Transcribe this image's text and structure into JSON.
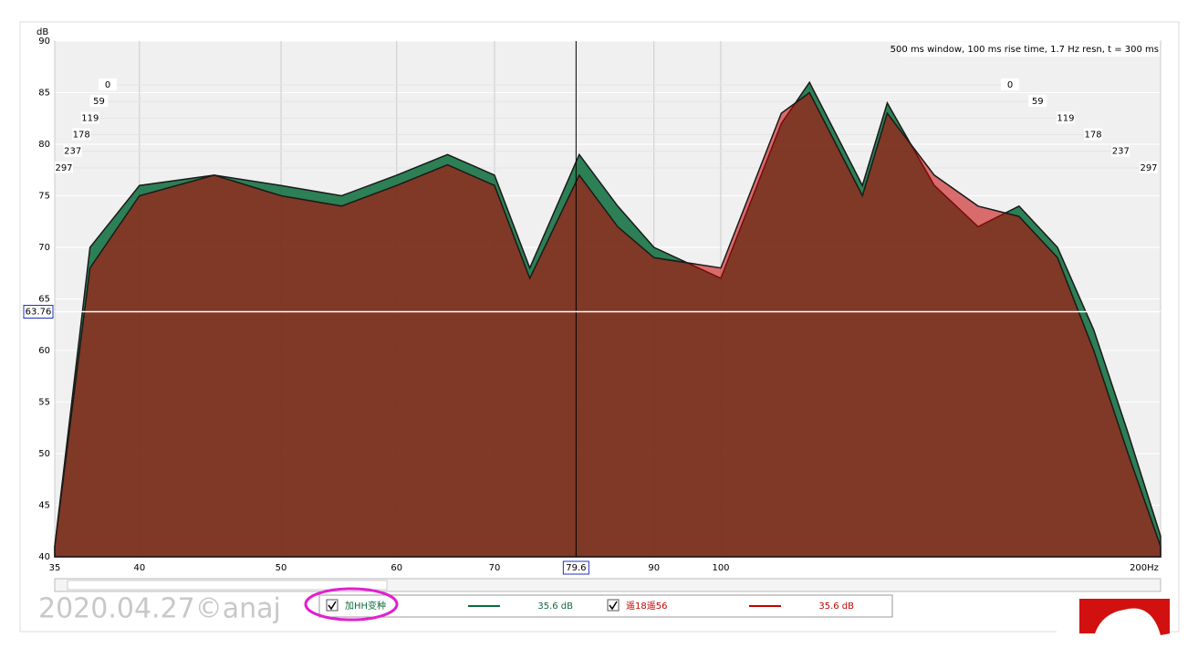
{
  "chart_data": {
    "type": "waterfall",
    "y_label": "dB",
    "annotation": "500 ms window, 100 ms rise time,  1.7 Hz resn, t = 300 ms",
    "watermark": "2020.04.27©anaj",
    "log_x": true,
    "grid": true,
    "xlim": [
      35,
      200
    ],
    "ylim": [
      40,
      90
    ],
    "xticks": [
      35,
      40,
      50,
      60,
      70,
      90,
      100,
      {
        "value": 200,
        "label": "200Hz"
      }
    ],
    "yticks": [
      40,
      45,
      50,
      55,
      60,
      65,
      70,
      75,
      80,
      85,
      90
    ],
    "zlim": [
      0,
      297
    ],
    "zticks": [
      0,
      59,
      119,
      178,
      237,
      297
    ],
    "cursor": {
      "x": {
        "value": 79.6,
        "label": "79.6"
      },
      "y": {
        "value": 63.76,
        "label": "63.76"
      }
    },
    "x": [
      35,
      37,
      40,
      45,
      50,
      55,
      60,
      65,
      70,
      74,
      80,
      85,
      90,
      100,
      110,
      115,
      125,
      130,
      140,
      150,
      160,
      170,
      180,
      190,
      200
    ],
    "series": [
      {
        "name": "加HH变种",
        "color": "#0b6b3a",
        "cursor_label": "35.6 dB",
        "values": [
          41,
          70,
          76,
          77,
          76,
          75,
          77,
          79,
          77,
          68,
          79,
          74,
          70,
          67,
          82,
          86,
          76,
          84,
          76,
          72,
          74,
          70,
          62,
          52,
          42
        ]
      },
      {
        "name": "遥18遥56",
        "color": "#c40000",
        "cursor_label": "35.6 dB",
        "values": [
          41,
          68,
          75,
          77,
          75,
          74,
          76,
          78,
          76,
          67,
          77,
          72,
          69,
          68,
          83,
          85,
          75,
          83,
          77,
          74,
          73,
          69,
          60,
          50,
          41
        ]
      }
    ]
  }
}
